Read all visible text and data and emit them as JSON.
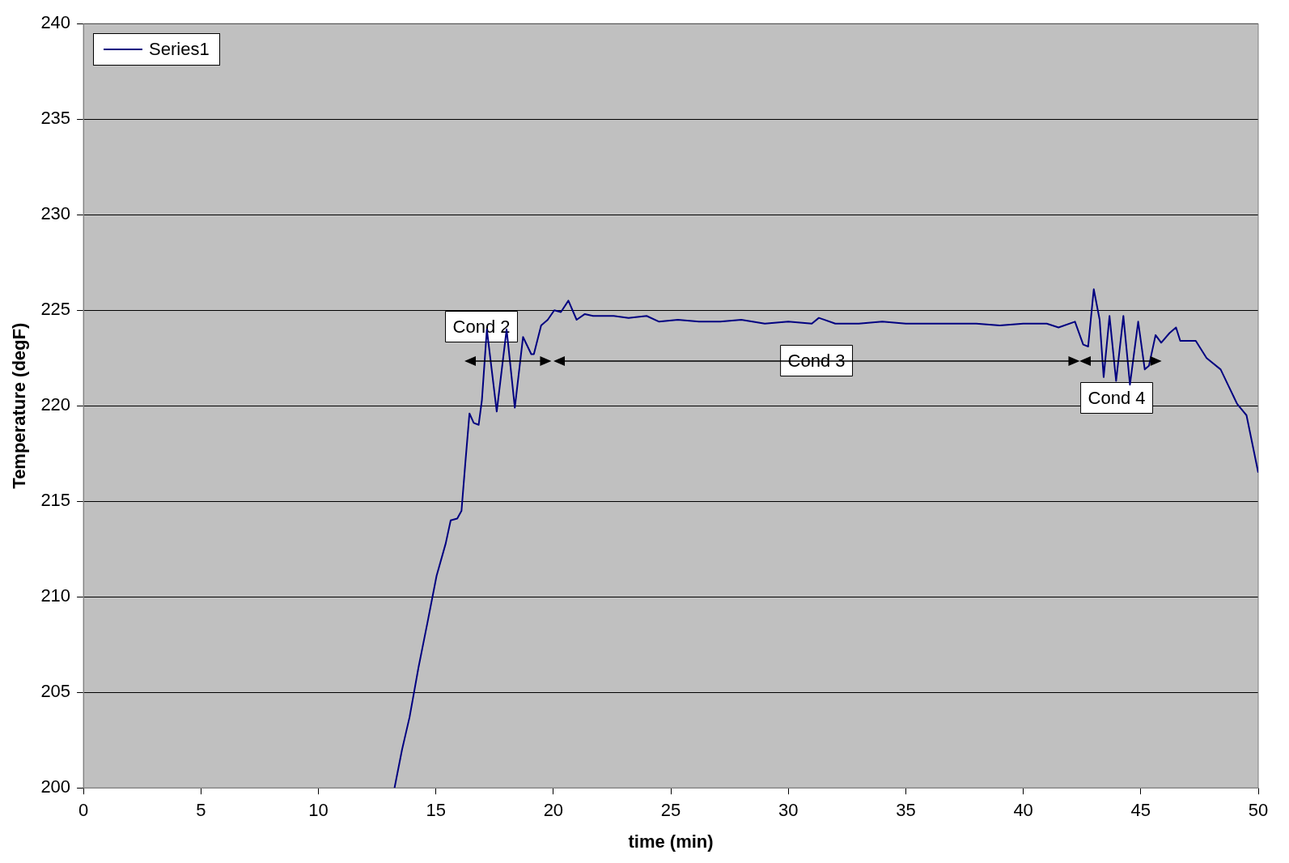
{
  "chart_data": {
    "type": "line",
    "xlabel": "time (min)",
    "ylabel": "Temperature (degF)",
    "xlim": [
      0,
      50
    ],
    "xticks": [
      0,
      5,
      10,
      15,
      20,
      25,
      30,
      35,
      40,
      45,
      50
    ],
    "ylim": [
      200,
      240
    ],
    "yticks": [
      200,
      205,
      210,
      215,
      220,
      225,
      230,
      235,
      240
    ],
    "grid": "y",
    "legend": "top left",
    "marker": "none",
    "line_style": "solid",
    "series": [
      {
        "name": "Series1",
        "color": "#000080",
        "x": [
          13.24,
          13.56,
          13.88,
          14.26,
          14.65,
          15.03,
          15.42,
          15.63,
          15.91,
          16.09,
          16.26,
          16.43,
          16.61,
          16.82,
          16.96,
          17.17,
          17.59,
          18.01,
          18.36,
          18.71,
          19.06,
          19.17,
          19.48,
          19.76,
          20.04,
          20.32,
          20.64,
          20.99,
          21.34,
          21.69,
          22.57,
          23.2,
          23.97,
          24.5,
          25.3,
          26.2,
          27.1,
          28,
          29,
          30,
          31,
          31.3,
          32,
          33,
          34,
          35,
          36,
          37,
          38,
          39,
          40,
          41,
          41.5,
          42.2,
          42.55,
          42.76,
          43.0,
          43.25,
          43.42,
          43.67,
          43.95,
          44.26,
          44.54,
          44.89,
          45.17,
          45.35,
          45.63,
          45.87,
          46.22,
          46.5,
          46.68,
          47.34,
          47.8,
          48.4,
          48.75,
          49.1,
          49.5,
          50.0
        ],
        "values": [
          200,
          202,
          203.7,
          206.3,
          208.7,
          211.1,
          212.8,
          214,
          214.1,
          214.5,
          217.1,
          219.6,
          219.1,
          219,
          220.3,
          224,
          219.7,
          224,
          219.9,
          223.6,
          222.7,
          222.7,
          224.2,
          224.5,
          225,
          224.9,
          225.5,
          224.5,
          224.8,
          224.7,
          224.7,
          224.6,
          224.7,
          224.4,
          224.5,
          224.4,
          224.4,
          224.5,
          224.3,
          224.4,
          224.3,
          224.6,
          224.3,
          224.3,
          224.4,
          224.3,
          224.3,
          224.3,
          224.3,
          224.2,
          224.3,
          224.3,
          224.1,
          224.4,
          223.2,
          223.1,
          226.1,
          224.5,
          221.5,
          224.7,
          221.3,
          224.7,
          221.1,
          224.4,
          221.9,
          222.1,
          223.7,
          223.3,
          223.8,
          224.1,
          223.4,
          223.4,
          222.5,
          221.9,
          221,
          220.1,
          219.5,
          216.5
        ]
      }
    ],
    "annotations": [
      "Cond 2",
      "Cond 3",
      "Cond 4"
    ]
  }
}
